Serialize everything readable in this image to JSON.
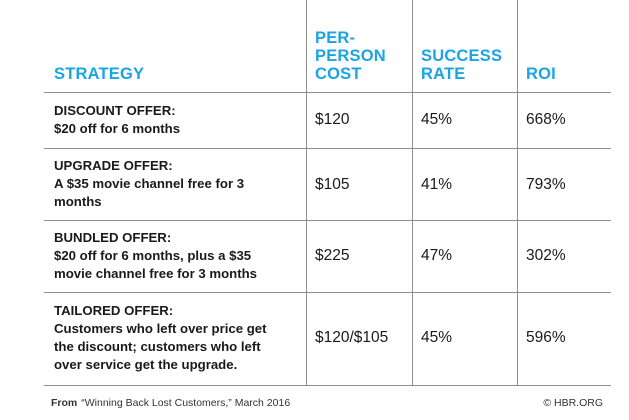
{
  "headers": {
    "strategy": "STRATEGY",
    "cost_line1": "PER-",
    "cost_line2": "PERSON",
    "cost_line3": "COST",
    "success_line1": "SUCCESS",
    "success_line2": "RATE",
    "roi": "ROI"
  },
  "rows": [
    {
      "title": "DISCOUNT OFFER:",
      "desc": [
        "$20 off for 6 months"
      ],
      "cost": "$120",
      "success": "45%",
      "roi": "668%"
    },
    {
      "title": "UPGRADE OFFER:",
      "desc": [
        "A $35 movie channel free for 3",
        "months"
      ],
      "cost": "$105",
      "success": "41%",
      "roi": "793%"
    },
    {
      "title": "BUNDLED OFFER:",
      "desc": [
        "$20 off for 6 months, plus a $35",
        "movie channel free for 3 months"
      ],
      "cost": "$225",
      "success": "47%",
      "roi": "302%"
    },
    {
      "title": "TAILORED OFFER:",
      "desc": [
        "Customers who left over price get",
        "the discount; customers who left",
        "over service get the upgrade."
      ],
      "cost": "$120/$105",
      "success": "45%",
      "roi": "596%"
    }
  ],
  "footer": {
    "from_label": "From",
    "source": "“Winning Back Lost Customers,” March 2016",
    "credit": "© HBR.ORG"
  },
  "colors": {
    "header_accent": "#1ba4e3",
    "rule": "#8f8f8f"
  }
}
